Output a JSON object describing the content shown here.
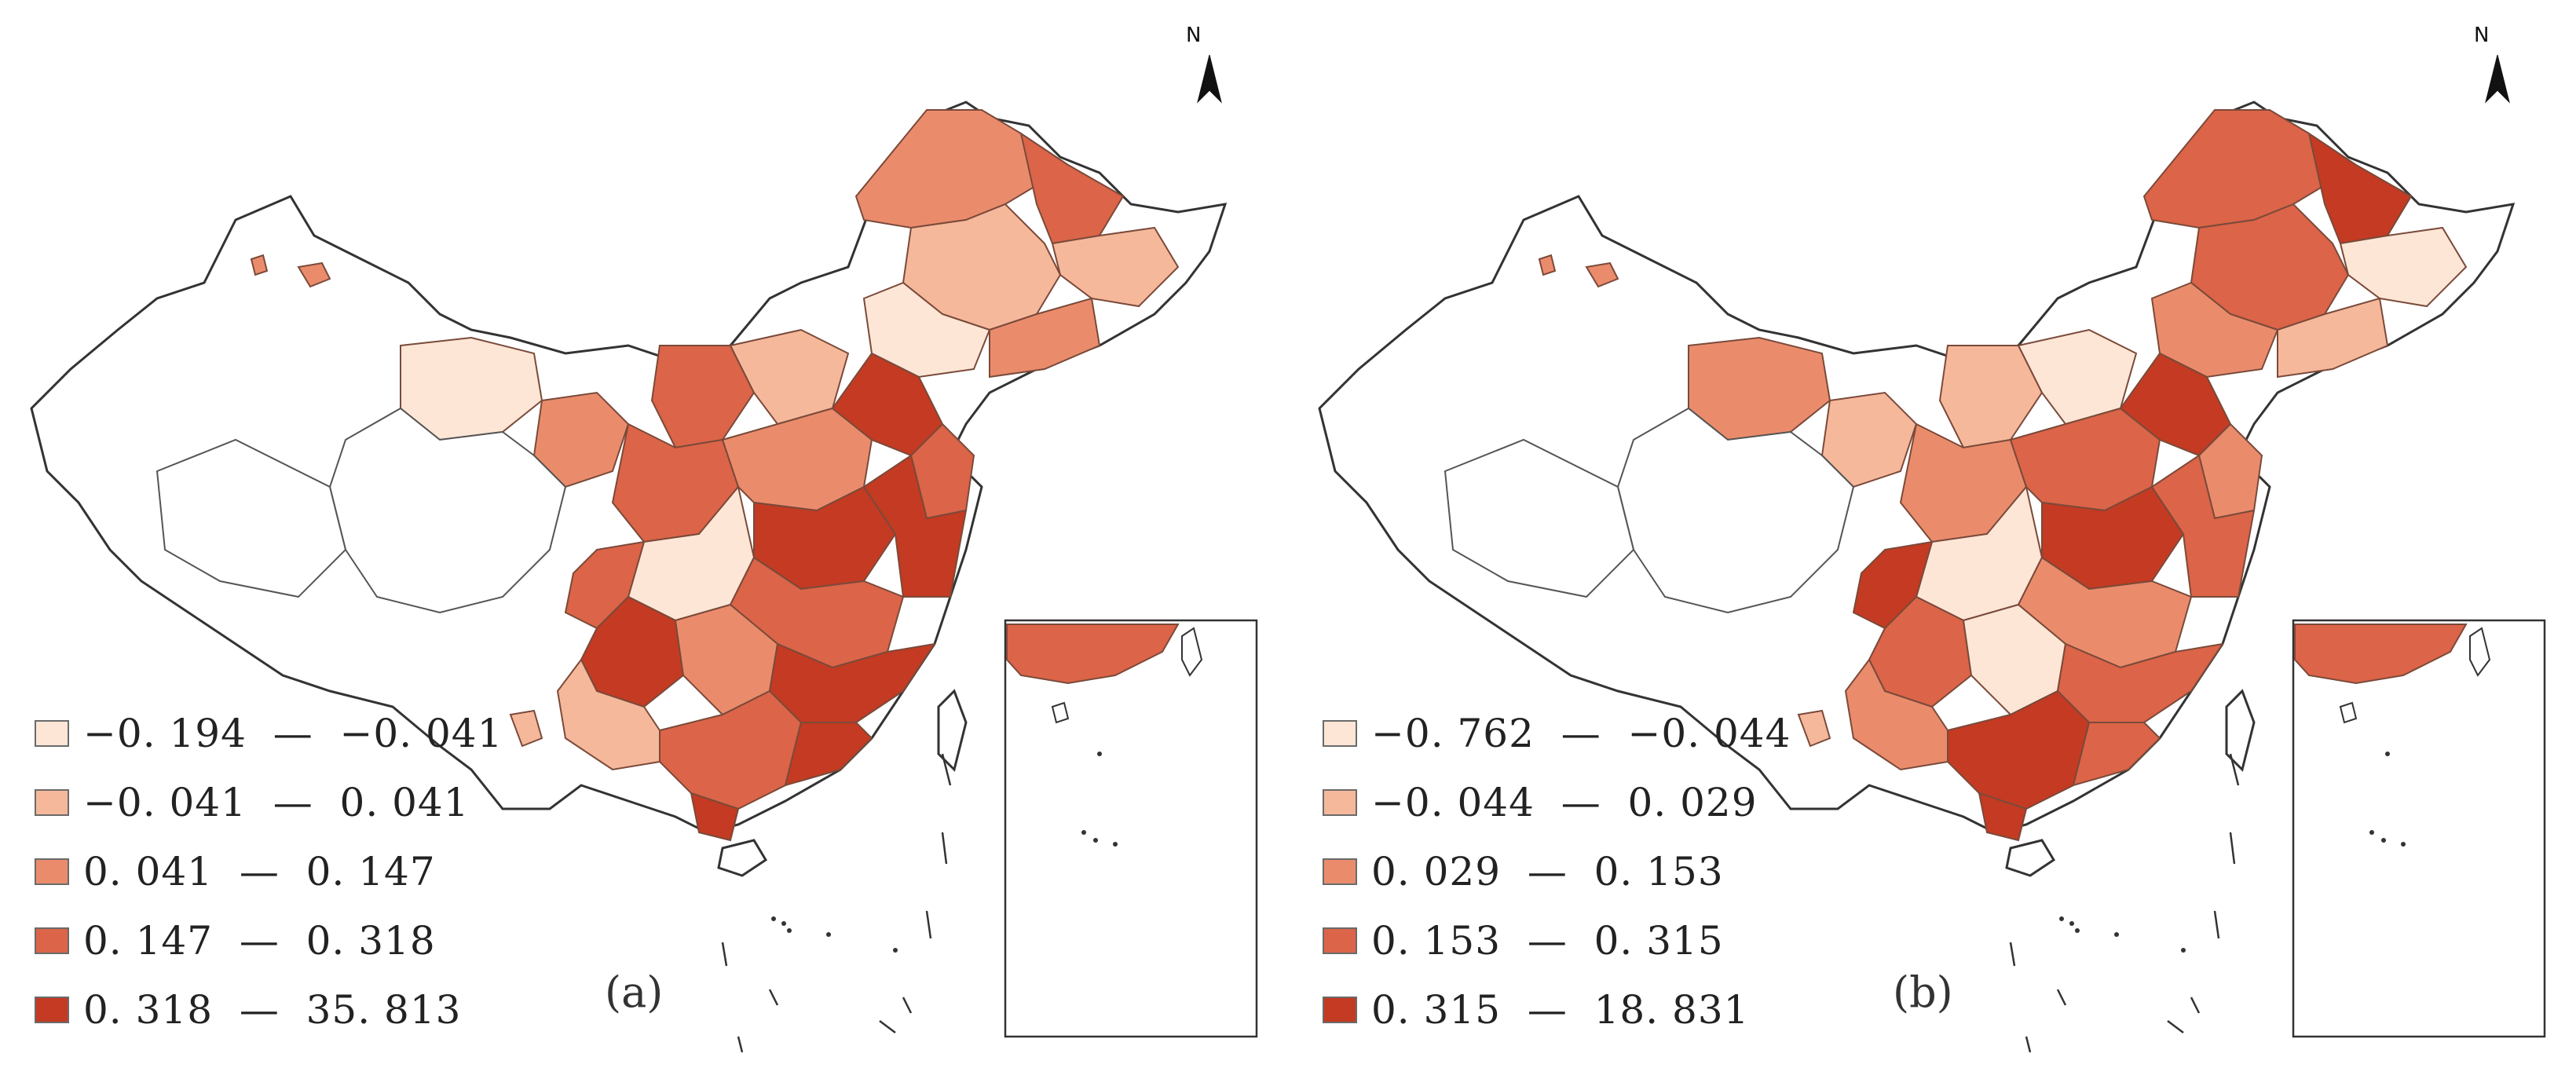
{
  "colors": {
    "class1": "#fde6d6",
    "class2": "#f6b89b",
    "class3": "#ea8c6c",
    "class4": "#dc6448",
    "class5": "#c43a22",
    "blank": "#ffffff",
    "border": "#333333",
    "inner_border": "#7a4a3a"
  },
  "north_label": "N",
  "panels": [
    {
      "label": "(a)",
      "legend": [
        {
          "text": "−0. 194  —  −0. 041",
          "color": "#fde6d6"
        },
        {
          "text": "−0. 041  —  0. 041",
          "color": "#f6b89b"
        },
        {
          "text": "0. 041  —  0. 147",
          "color": "#ea8c6c"
        },
        {
          "text": "0. 147  —  0. 318",
          "color": "#dc6448"
        },
        {
          "text": "0. 318  —  35. 813",
          "color": "#c43a22"
        }
      ]
    },
    {
      "label": "(b)",
      "legend": [
        {
          "text": "−0. 762  —  −0. 044",
          "color": "#fde6d6"
        },
        {
          "text": "−0. 044  —  0. 029",
          "color": "#f6b89b"
        },
        {
          "text": "0. 029  —  0. 153",
          "color": "#ea8c6c"
        },
        {
          "text": "0. 153  —  0. 315",
          "color": "#dc6448"
        },
        {
          "text": "0. 315  —  18. 831",
          "color": "#c43a22"
        }
      ]
    }
  ]
}
